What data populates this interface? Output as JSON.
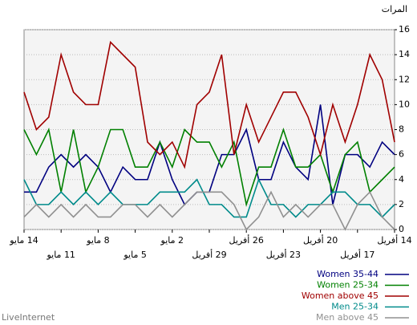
{
  "chart_data": {
    "type": "line",
    "y_label": "المرات",
    "source": "LiveInternet",
    "categories": [
      "14 مايو",
      null,
      null,
      "11 مايو",
      null,
      null,
      "8 مايو",
      null,
      null,
      "5 مايو",
      null,
      null,
      "2 مايو",
      null,
      null,
      "29 أفريل",
      null,
      null,
      "26 أفريل",
      null,
      null,
      "23 أفريل",
      null,
      null,
      "20 أفريل",
      null,
      null,
      "17 أفريل",
      null,
      null,
      "14 أفريل"
    ],
    "series": [
      {
        "name": "Women 35-44",
        "color": "#000080",
        "values": [
          3,
          3,
          5,
          6,
          5,
          6,
          5,
          3,
          5,
          4,
          4,
          7,
          4,
          2,
          3,
          3,
          6,
          6,
          8,
          4,
          4,
          7,
          5,
          4,
          10,
          2,
          6,
          6,
          5,
          7,
          6
        ]
      },
      {
        "name": "Women 25-34",
        "color": "#008000",
        "values": [
          8,
          6,
          8,
          3,
          8,
          3,
          5,
          8,
          8,
          5,
          5,
          7,
          5,
          8,
          7,
          7,
          5,
          7,
          2,
          5,
          5,
          8,
          5,
          5,
          6,
          3,
          6,
          7,
          3,
          4,
          5
        ]
      },
      {
        "name": "Women above 45",
        "color": "#a00000",
        "values": [
          11,
          8,
          9,
          14,
          11,
          10,
          10,
          15,
          14,
          13,
          7,
          6,
          7,
          5,
          10,
          11,
          14,
          6,
          10,
          7,
          9,
          11,
          11,
          9,
          6,
          10,
          7,
          10,
          14,
          12,
          7
        ]
      },
      {
        "name": "Men 25-34",
        "color": "#008b8b",
        "values": [
          4,
          2,
          2,
          3,
          2,
          3,
          2,
          3,
          2,
          2,
          2,
          3,
          3,
          3,
          4,
          2,
          2,
          1,
          1,
          4,
          2,
          2,
          1,
          2,
          2,
          3,
          3,
          2,
          2,
          1,
          2
        ]
      },
      {
        "name": "Men above 45",
        "color": "#909090",
        "values": [
          1,
          2,
          1,
          2,
          1,
          2,
          1,
          1,
          2,
          2,
          1,
          2,
          1,
          2,
          3,
          3,
          3,
          2,
          0,
          1,
          3,
          1,
          2,
          1,
          2,
          2,
          0,
          2,
          3,
          1,
          0
        ]
      }
    ],
    "ylim": [
      0,
      16
    ],
    "yticks": [
      0,
      2,
      4,
      6,
      8,
      10,
      12,
      14,
      16
    ],
    "grid": true,
    "legend": "bottom-right"
  }
}
